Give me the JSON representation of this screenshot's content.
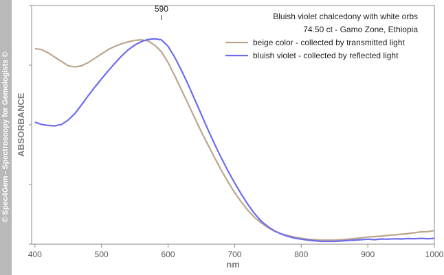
{
  "watermark": "© Spec4Gem - Spectroscopy for Gemologists ©",
  "chart_data": {
    "type": "line",
    "title": "Bluish violet chalcedony with white orbs",
    "subtitle": "74.50 ct  - Gamo Zone, Ethiopia",
    "xlabel": "nm",
    "ylabel": "ABSORBANCE",
    "xlim": [
      395,
      1000
    ],
    "ylim": [
      0,
      1
    ],
    "x_ticks": [
      400,
      500,
      600,
      700,
      800,
      900,
      1000
    ],
    "grid": false,
    "legend_position": "top-right",
    "annotations": [
      {
        "text": "590",
        "x": 590
      }
    ],
    "series": [
      {
        "name": "beige color - collected by transmitted light",
        "color": "#bca58c",
        "x": [
          400,
          410,
          420,
          430,
          440,
          450,
          460,
          470,
          480,
          490,
          500,
          510,
          520,
          530,
          540,
          550,
          560,
          570,
          580,
          590,
          600,
          610,
          620,
          630,
          640,
          650,
          660,
          670,
          680,
          690,
          700,
          710,
          720,
          730,
          740,
          750,
          760,
          770,
          780,
          790,
          800,
          810,
          820,
          830,
          840,
          850,
          860,
          870,
          880,
          890,
          900,
          910,
          920,
          930,
          940,
          950,
          960,
          970,
          980,
          990,
          1000
        ],
        "y": [
          0.89,
          0.885,
          0.87,
          0.85,
          0.83,
          0.81,
          0.805,
          0.81,
          0.825,
          0.845,
          0.865,
          0.885,
          0.9,
          0.912,
          0.921,
          0.928,
          0.93,
          0.925,
          0.905,
          0.875,
          0.825,
          0.765,
          0.7,
          0.635,
          0.57,
          0.505,
          0.445,
          0.385,
          0.328,
          0.275,
          0.225,
          0.182,
          0.143,
          0.11,
          0.085,
          0.064,
          0.047,
          0.035,
          0.027,
          0.02,
          0.015,
          0.01,
          0.008,
          0.006,
          0.006,
          0.006,
          0.008,
          0.01,
          0.013,
          0.016,
          0.02,
          0.022,
          0.024,
          0.028,
          0.03,
          0.033,
          0.036,
          0.04,
          0.044,
          0.045,
          0.05
        ]
      },
      {
        "name": "bluish violet - collected by reflected light",
        "color": "#6c6cf0",
        "x": [
          400,
          410,
          420,
          430,
          440,
          450,
          460,
          470,
          480,
          490,
          500,
          510,
          520,
          530,
          540,
          550,
          560,
          570,
          580,
          590,
          600,
          610,
          620,
          630,
          640,
          650,
          660,
          670,
          680,
          690,
          700,
          710,
          720,
          730,
          740,
          750,
          760,
          770,
          780,
          790,
          800,
          810,
          820,
          830,
          840,
          850,
          860,
          870,
          880,
          890,
          900,
          910,
          920,
          930,
          940,
          950,
          960,
          970,
          980,
          990,
          1000
        ],
        "y": [
          0.55,
          0.54,
          0.535,
          0.533,
          0.54,
          0.56,
          0.59,
          0.63,
          0.672,
          0.712,
          0.75,
          0.787,
          0.822,
          0.855,
          0.884,
          0.906,
          0.922,
          0.932,
          0.935,
          0.93,
          0.9,
          0.85,
          0.79,
          0.725,
          0.655,
          0.585,
          0.515,
          0.448,
          0.385,
          0.325,
          0.27,
          0.218,
          0.17,
          0.128,
          0.093,
          0.068,
          0.048,
          0.034,
          0.023,
          0.015,
          0.01,
          0.006,
          0.003,
          0.0,
          0.0,
          0.0,
          0.002,
          0.004,
          0.006,
          0.008,
          0.01,
          0.008,
          0.011,
          0.01,
          0.012,
          0.011,
          0.013,
          0.012,
          0.014,
          0.012,
          0.014
        ]
      }
    ]
  }
}
